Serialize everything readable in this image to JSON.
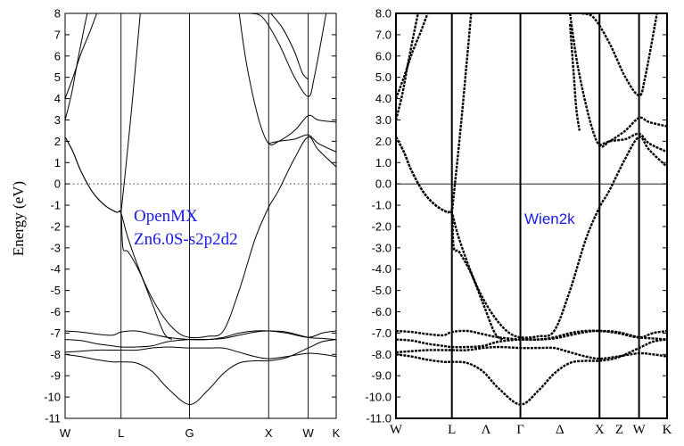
{
  "chart_data": [
    {
      "type": "line",
      "panel": "left",
      "ylabel": "Energy (eV)",
      "ylim": [
        -11,
        8
      ],
      "yticks": [
        8,
        7,
        6,
        5,
        4,
        3,
        2,
        1,
        0,
        -1,
        -2,
        -3,
        -4,
        -5,
        -6,
        -7,
        -8,
        -9,
        -10,
        -11
      ],
      "ytick_labels": [
        "8",
        "7",
        "6",
        "5",
        "4",
        "3",
        "2",
        "1",
        "0",
        "-1",
        "-2",
        "-3",
        "-4",
        "-5",
        "-6",
        "-7",
        "-8",
        "-9",
        "-10",
        "-11"
      ],
      "kpoints": [
        {
          "label": "W",
          "k": 0.0
        },
        {
          "label": "L",
          "k": 0.707
        },
        {
          "label": "G",
          "k": 1.573
        },
        {
          "label": "X",
          "k": 2.573
        },
        {
          "label": "W",
          "k": 3.073
        },
        {
          "label": "K",
          "k": 3.427
        }
      ],
      "fermi_level": 0,
      "annotation": [
        "OpenMX",
        "Zn6.0S-s2p2d2"
      ],
      "bands": [
        {
          "k": [
            0,
            0.2,
            0.4,
            0.6,
            0.707,
            0.9,
            1.1,
            1.3,
            1.573,
            1.8,
            2.0,
            2.2,
            2.4,
            2.573,
            2.8,
            3.073,
            3.25,
            3.427
          ],
          "e": [
            -7.9,
            -7.85,
            -7.8,
            -7.8,
            -7.8,
            -7.8,
            -7.7,
            -7.65,
            -7.7,
            -7.7,
            -7.7,
            -7.9,
            -8.1,
            -8.2,
            -8.1,
            -7.95,
            -8.0,
            -8.1
          ]
        },
        {
          "k": [
            0,
            0.2,
            0.4,
            0.6,
            0.707,
            0.9,
            1.1,
            1.3,
            1.573,
            1.8,
            2.0,
            2.2,
            2.4,
            2.573,
            2.8,
            3.073,
            3.25,
            3.427
          ],
          "e": [
            -8.0,
            -8.1,
            -8.25,
            -8.35,
            -8.35,
            -8.4,
            -8.8,
            -9.6,
            -10.35,
            -9.7,
            -8.9,
            -8.4,
            -8.3,
            -8.3,
            -8.15,
            -7.7,
            -7.4,
            -7.3
          ]
        },
        {
          "k": [
            0,
            0.2,
            0.4,
            0.6,
            0.707,
            0.9,
            1.1,
            1.3,
            1.573,
            1.8,
            2.0,
            2.2,
            2.4,
            2.573,
            2.8,
            3.073,
            3.25,
            3.427
          ],
          "e": [
            -7.3,
            -7.35,
            -7.5,
            -7.6,
            -7.65,
            -7.65,
            -7.6,
            -7.4,
            -7.3,
            -7.3,
            -7.25,
            -7.1,
            -6.95,
            -6.9,
            -6.95,
            -7.2,
            -7.25,
            -7.3
          ]
        },
        {
          "k": [
            0,
            0.2,
            0.4,
            0.6,
            0.707,
            0.9,
            1.1,
            1.3,
            1.573,
            1.8,
            2.0,
            2.2,
            2.4,
            2.573,
            2.8,
            3.073,
            3.25,
            3.427
          ],
          "e": [
            -6.9,
            -6.95,
            -7.05,
            -7.1,
            -6.95,
            -6.9,
            -7.05,
            -7.2,
            -7.3,
            -7.3,
            -7.2,
            -7.0,
            -6.9,
            -6.9,
            -7.0,
            -7.2,
            -7.0,
            -6.9
          ]
        },
        {
          "k": [
            0,
            0.1,
            0.2,
            0.35,
            0.5,
            0.65,
            0.707,
            0.8,
            1.0,
            1.2,
            1.4,
            1.573,
            1.8,
            2.0,
            2.2,
            2.4,
            2.573,
            2.7,
            2.9,
            3.073,
            3.2,
            3.427
          ],
          "e": [
            2.2,
            1.5,
            0.6,
            -0.4,
            -1.0,
            -1.33,
            -1.37,
            -2.6,
            -4.6,
            -6.0,
            -6.9,
            -7.2,
            -7.15,
            -6.9,
            -5.0,
            -2.6,
            -1.1,
            -0.3,
            1.2,
            2.2,
            1.6,
            0.8
          ]
        },
        {
          "k": [
            0,
            0.1,
            0.2,
            0.35,
            0.5,
            0.65,
            0.707,
            0.73,
            0.8,
            0.95,
            1.1,
            1.25,
            1.35
          ],
          "e": [
            2.2,
            1.5,
            0.6,
            -0.4,
            -1.0,
            -1.33,
            -1.37,
            -3.0,
            -3.2,
            -4.2,
            -5.6,
            -7.0,
            -7.3
          ]
        },
        {
          "k": [
            0,
            0.1,
            0.2,
            0.32,
            0.4
          ],
          "e": [
            4.0,
            5.0,
            6.1,
            7.2,
            8.0
          ]
        },
        {
          "k": [
            0,
            0.08,
            0.16,
            0.24,
            0.28
          ],
          "e": [
            3.0,
            4.2,
            5.8,
            7.3,
            8.0
          ]
        },
        {
          "k": [
            0.707,
            0.76,
            0.82,
            0.89,
            0.95
          ],
          "e": [
            -1.37,
            0.5,
            2.7,
            5.5,
            8.0
          ]
        },
        {
          "k": [
            2.2,
            2.3,
            2.45,
            2.573,
            2.7,
            2.9,
            3.073,
            3.2,
            3.427
          ],
          "e": [
            8.0,
            5.5,
            3.0,
            1.9,
            2.0,
            2.5,
            3.2,
            3.0,
            2.9
          ]
        },
        {
          "k": [
            2.573,
            2.7,
            2.9,
            3.073,
            3.2,
            3.427
          ],
          "e": [
            1.9,
            2.0,
            2.1,
            2.3,
            1.9,
            1.5
          ]
        },
        {
          "k": [
            2.35,
            2.5,
            2.7,
            2.9,
            3.073,
            3.15,
            3.3
          ],
          "e": [
            8.0,
            7.8,
            6.6,
            5.0,
            4.1,
            5.0,
            8.0
          ]
        },
        {
          "k": [
            2.6,
            2.75,
            2.9,
            3.0,
            3.073
          ],
          "e": [
            8.0,
            7.3,
            6.2,
            5.2,
            4.9
          ]
        }
      ]
    },
    {
      "type": "line",
      "panel": "right",
      "ylim": [
        -11,
        8
      ],
      "yticks": [
        8,
        7,
        6,
        5,
        4,
        3,
        2,
        1,
        0,
        -1,
        -2,
        -3,
        -4,
        -5,
        -6,
        -7,
        -8,
        -9,
        -10,
        -11
      ],
      "ytick_labels": [
        "8.0",
        "7.0",
        "6.0",
        "5.0",
        "4.0",
        "3.0",
        "2.0",
        "1.0",
        "0.0",
        "-1.0",
        "-2.0",
        "-3.0",
        "-4.0",
        "-5.0",
        "-6.0",
        "-7.0",
        "-8.0",
        "-9.0",
        "-10.0",
        "-11.0"
      ],
      "kpoints": [
        {
          "label": "W",
          "k": 0.0
        },
        {
          "label": "L",
          "k": 0.707
        },
        {
          "label": "Λ",
          "k": 1.14
        },
        {
          "label": "Γ",
          "k": 1.573
        },
        {
          "label": "Δ",
          "k": 2.073
        },
        {
          "label": "X",
          "k": 2.573
        },
        {
          "label": "Z",
          "k": 2.823
        },
        {
          "label": "W",
          "k": 3.073
        },
        {
          "label": "K",
          "k": 3.427
        }
      ],
      "vlines_k": [
        0.707,
        1.573,
        2.573,
        3.073
      ],
      "fermi_level": 0,
      "annotation": [
        "Wien2k"
      ],
      "bands": [
        {
          "k": [
            0,
            0.2,
            0.4,
            0.6,
            0.707,
            0.9,
            1.1,
            1.3,
            1.573,
            1.8,
            2.0,
            2.2,
            2.4,
            2.573,
            2.8,
            3.073,
            3.25,
            3.427
          ],
          "e": [
            -7.9,
            -7.85,
            -7.8,
            -7.8,
            -7.8,
            -7.8,
            -7.7,
            -7.65,
            -7.7,
            -7.7,
            -7.7,
            -7.9,
            -8.1,
            -8.2,
            -8.1,
            -7.95,
            -8.0,
            -8.1
          ]
        },
        {
          "k": [
            0,
            0.2,
            0.4,
            0.6,
            0.707,
            0.9,
            1.1,
            1.3,
            1.573,
            1.8,
            2.0,
            2.2,
            2.4,
            2.573,
            2.8,
            3.073,
            3.25,
            3.427
          ],
          "e": [
            -8.0,
            -8.1,
            -8.25,
            -8.35,
            -8.35,
            -8.4,
            -8.8,
            -9.6,
            -10.35,
            -9.7,
            -8.9,
            -8.4,
            -8.3,
            -8.3,
            -8.15,
            -7.7,
            -7.4,
            -7.3
          ]
        },
        {
          "k": [
            0,
            0.2,
            0.4,
            0.6,
            0.707,
            0.9,
            1.1,
            1.3,
            1.573,
            1.8,
            2.0,
            2.2,
            2.4,
            2.573,
            2.8,
            3.073,
            3.25,
            3.427
          ],
          "e": [
            -7.3,
            -7.35,
            -7.5,
            -7.6,
            -7.65,
            -7.65,
            -7.6,
            -7.4,
            -7.3,
            -7.3,
            -7.25,
            -7.1,
            -6.95,
            -6.9,
            -6.95,
            -7.2,
            -7.25,
            -7.3
          ]
        },
        {
          "k": [
            0,
            0.2,
            0.4,
            0.6,
            0.707,
            0.9,
            1.1,
            1.3,
            1.573,
            1.8,
            2.0,
            2.2,
            2.4,
            2.573,
            2.8,
            3.073,
            3.25,
            3.427
          ],
          "e": [
            -6.9,
            -6.95,
            -7.05,
            -7.1,
            -6.95,
            -6.9,
            -7.05,
            -7.2,
            -7.3,
            -7.3,
            -7.2,
            -7.0,
            -6.9,
            -6.9,
            -7.0,
            -7.2,
            -7.0,
            -6.9
          ]
        },
        {
          "k": [
            0,
            0.1,
            0.2,
            0.35,
            0.5,
            0.65,
            0.707,
            0.8,
            1.0,
            1.2,
            1.4,
            1.573,
            1.8,
            2.0,
            2.2,
            2.4,
            2.573,
            2.7,
            2.9,
            3.073,
            3.2,
            3.427
          ],
          "e": [
            2.2,
            1.5,
            0.6,
            -0.4,
            -1.0,
            -1.33,
            -1.37,
            -2.6,
            -4.6,
            -6.0,
            -6.9,
            -7.2,
            -7.15,
            -6.9,
            -5.0,
            -2.6,
            -1.1,
            -0.3,
            1.2,
            2.2,
            1.6,
            0.8
          ]
        },
        {
          "k": [
            0,
            0.1,
            0.2,
            0.35,
            0.5,
            0.65,
            0.707,
            0.73,
            0.8,
            0.95,
            1.1,
            1.25,
            1.35
          ],
          "e": [
            2.2,
            1.5,
            0.6,
            -0.4,
            -1.0,
            -1.33,
            -1.37,
            -3.0,
            -3.2,
            -4.2,
            -5.6,
            -7.0,
            -7.3
          ]
        },
        {
          "k": [
            0,
            0.1,
            0.2,
            0.32,
            0.4
          ],
          "e": [
            4.0,
            5.0,
            6.1,
            7.2,
            8.0
          ]
        },
        {
          "k": [
            0,
            0.08,
            0.16,
            0.24,
            0.28
          ],
          "e": [
            3.0,
            4.2,
            5.8,
            7.3,
            8.0
          ]
        },
        {
          "k": [
            0.707,
            0.76,
            0.82,
            0.89,
            0.95
          ],
          "e": [
            -1.37,
            0.5,
            2.7,
            5.5,
            8.0
          ]
        },
        {
          "k": [
            2.2,
            2.3,
            2.45,
            2.573,
            2.7,
            2.9,
            3.073,
            3.2,
            3.427
          ],
          "e": [
            8.0,
            5.5,
            3.0,
            1.8,
            2.0,
            2.5,
            3.1,
            2.9,
            2.7
          ]
        },
        {
          "k": [
            2.573,
            2.7,
            2.9,
            3.073,
            3.2,
            3.427
          ],
          "e": [
            1.8,
            2.0,
            2.1,
            2.35,
            1.9,
            1.5
          ]
        },
        {
          "k": [
            2.35,
            2.5,
            2.7,
            2.9,
            3.073,
            3.15,
            3.3
          ],
          "e": [
            8.0,
            7.8,
            6.6,
            5.0,
            4.15,
            5.0,
            8.0
          ]
        },
        {
          "k": [
            2.2,
            2.22,
            2.25,
            2.28,
            2.32
          ],
          "e": [
            7.5,
            6.5,
            5.0,
            3.5,
            2.5
          ]
        }
      ]
    }
  ]
}
